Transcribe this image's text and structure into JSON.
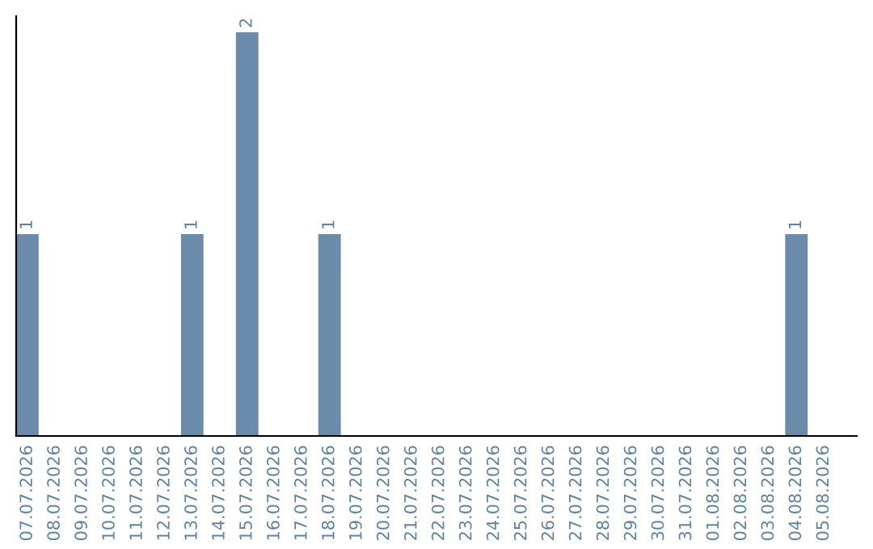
{
  "chart_data": {
    "type": "bar",
    "categories": [
      "07.07.2026",
      "08.07.2026",
      "09.07.2026",
      "10.07.2026",
      "11.07.2026",
      "12.07.2026",
      "13.07.2026",
      "14.07.2026",
      "15.07.2026",
      "16.07.2026",
      "17.07.2026",
      "18.07.2026",
      "19.07.2026",
      "20.07.2026",
      "21.07.2026",
      "22.07.2026",
      "23.07.2026",
      "24.07.2026",
      "25.07.2026",
      "26.07.2026",
      "27.07.2026",
      "28.07.2026",
      "29.07.2026",
      "30.07.2026",
      "31.07.2026",
      "01.08.2026",
      "02.08.2026",
      "03.08.2026",
      "04.08.2026",
      "05.08.2026"
    ],
    "values": [
      1,
      0,
      0,
      0,
      0,
      0,
      1,
      0,
      2,
      0,
      0,
      1,
      0,
      0,
      0,
      0,
      0,
      0,
      0,
      0,
      0,
      0,
      0,
      0,
      0,
      0,
      0,
      0,
      1,
      0
    ],
    "value_labels": [
      "1",
      null,
      null,
      null,
      null,
      null,
      "1",
      null,
      "2",
      null,
      null,
      "1",
      null,
      null,
      null,
      null,
      null,
      null,
      null,
      null,
      null,
      null,
      null,
      null,
      null,
      null,
      null,
      null,
      "1",
      null
    ],
    "color": "#6a8caa",
    "ylim": [
      0,
      2.08
    ],
    "tick_labels": "x",
    "grid": false,
    "legend": false
  }
}
